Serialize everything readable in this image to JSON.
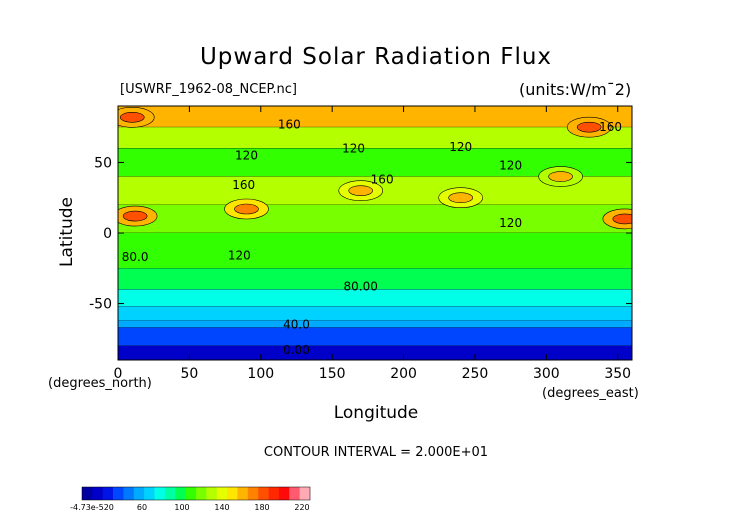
{
  "chart_data": {
    "type": "heatmap",
    "title": "Upward Solar Radiation Flux",
    "subtitle_left": "[USWRF_1962-08_NCEP.nc]",
    "subtitle_right": "(units:W/m^2)",
    "units_display": "(units:W/m¯2)",
    "xlabel": "Longitude",
    "ylabel": "Latitude",
    "x_unit_label": "(degrees_north)",
    "x_unit_label_right": "(degrees_east)",
    "x_ticks": [
      0,
      50,
      100,
      150,
      200,
      250,
      300,
      350
    ],
    "y_ticks": [
      50,
      0,
      -50
    ],
    "xlim": [
      0,
      360
    ],
    "ylim": [
      -90,
      90
    ],
    "contour_interval_text": "CONTOUR INTERVAL = 2.000E+01",
    "contour_labels": [
      {
        "text": "160",
        "lon": 120,
        "lat": 77
      },
      {
        "text": "160",
        "lon": 345,
        "lat": 75
      },
      {
        "text": "120",
        "lon": 165,
        "lat": 60
      },
      {
        "text": "120",
        "lon": 90,
        "lat": 55
      },
      {
        "text": "120",
        "lon": 240,
        "lat": 61
      },
      {
        "text": "160",
        "lon": 88,
        "lat": 34
      },
      {
        "text": "160",
        "lon": 185,
        "lat": 38
      },
      {
        "text": "120",
        "lon": 275,
        "lat": 48
      },
      {
        "text": "120",
        "lon": 275,
        "lat": 7
      },
      {
        "text": "80.0",
        "lon": 12,
        "lat": -17
      },
      {
        "text": "120",
        "lon": 85,
        "lat": -16
      },
      {
        "text": "80.00",
        "lon": 170,
        "lat": -38
      },
      {
        "text": "40.0",
        "lon": 125,
        "lat": -65
      },
      {
        "text": "0.00",
        "lon": 125,
        "lat": -83
      }
    ],
    "latitude_bands": [
      {
        "lat_from": 90,
        "lat_to": 75,
        "value": 170
      },
      {
        "lat_from": 75,
        "lat_to": 60,
        "value": 130
      },
      {
        "lat_from": 60,
        "lat_to": 40,
        "value": 110
      },
      {
        "lat_from": 40,
        "lat_to": 20,
        "value": 130
      },
      {
        "lat_from": 20,
        "lat_to": 0,
        "value": 120
      },
      {
        "lat_from": 0,
        "lat_to": -25,
        "value": 105
      },
      {
        "lat_from": -25,
        "lat_to": -40,
        "value": 95
      },
      {
        "lat_from": -40,
        "lat_to": -52,
        "value": 75
      },
      {
        "lat_from": -52,
        "lat_to": -62,
        "value": 55
      },
      {
        "lat_from": -62,
        "lat_to": -67,
        "value": 45
      },
      {
        "lat_from": -67,
        "lat_to": -80,
        "value": 20
      },
      {
        "lat_from": -80,
        "lat_to": -90,
        "value": 0
      }
    ],
    "hotspots": [
      {
        "lon": 12,
        "lat": 12,
        "value": 190
      },
      {
        "lon": 355,
        "lat": 10,
        "value": 190
      },
      {
        "lon": 90,
        "lat": 17,
        "value": 180
      },
      {
        "lon": 170,
        "lat": 30,
        "value": 170
      },
      {
        "lon": 240,
        "lat": 25,
        "value": 170
      },
      {
        "lon": 310,
        "lat": 40,
        "value": 160
      },
      {
        "lon": 330,
        "lat": 75,
        "value": 190
      },
      {
        "lon": 10,
        "lat": 82,
        "value": 190
      }
    ],
    "colorbar": {
      "tick_labels": [
        "-4.73e-520",
        "60",
        "100",
        "140",
        "180",
        "220"
      ],
      "colors": [
        "#0000a0",
        "#0000c8",
        "#0014e6",
        "#0046ff",
        "#0078ff",
        "#00aaff",
        "#00d2ff",
        "#00ffe6",
        "#00ffa0",
        "#00ff50",
        "#32ff00",
        "#78ff00",
        "#b4ff00",
        "#e6ff00",
        "#ffe600",
        "#ffb400",
        "#ff8200",
        "#ff5000",
        "#ff2800",
        "#ff0a0a",
        "#ff5a6e",
        "#ffaab4"
      ]
    }
  }
}
